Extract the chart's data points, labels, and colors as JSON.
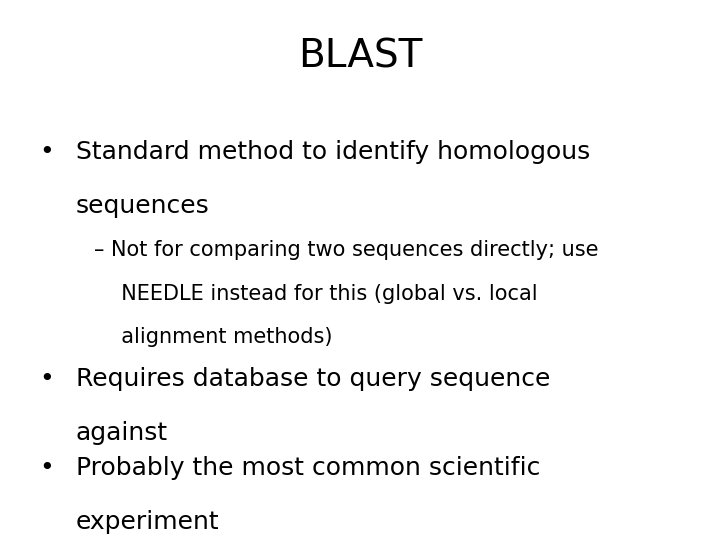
{
  "title": "BLAST",
  "title_fontsize": 28,
  "background_color": "#ffffff",
  "text_color": "#000000",
  "bullet1_line1": "Standard method to identify homologous",
  "bullet1_line2": "sequences",
  "sub1_line1": "– Not for comparing two sequences directly; use",
  "sub1_line2": "  NEEDLE instead for this (global vs. local",
  "sub1_line3": "  alignment methods)",
  "bullet2_line1": "Requires database to query sequence",
  "bullet2_line2": "against",
  "bullet3_line1": "Probably the most common scientific",
  "bullet3_line2": "experiment",
  "bullet_fontsize": 18,
  "sub_fontsize": 15,
  "bullet_symbol": "•"
}
